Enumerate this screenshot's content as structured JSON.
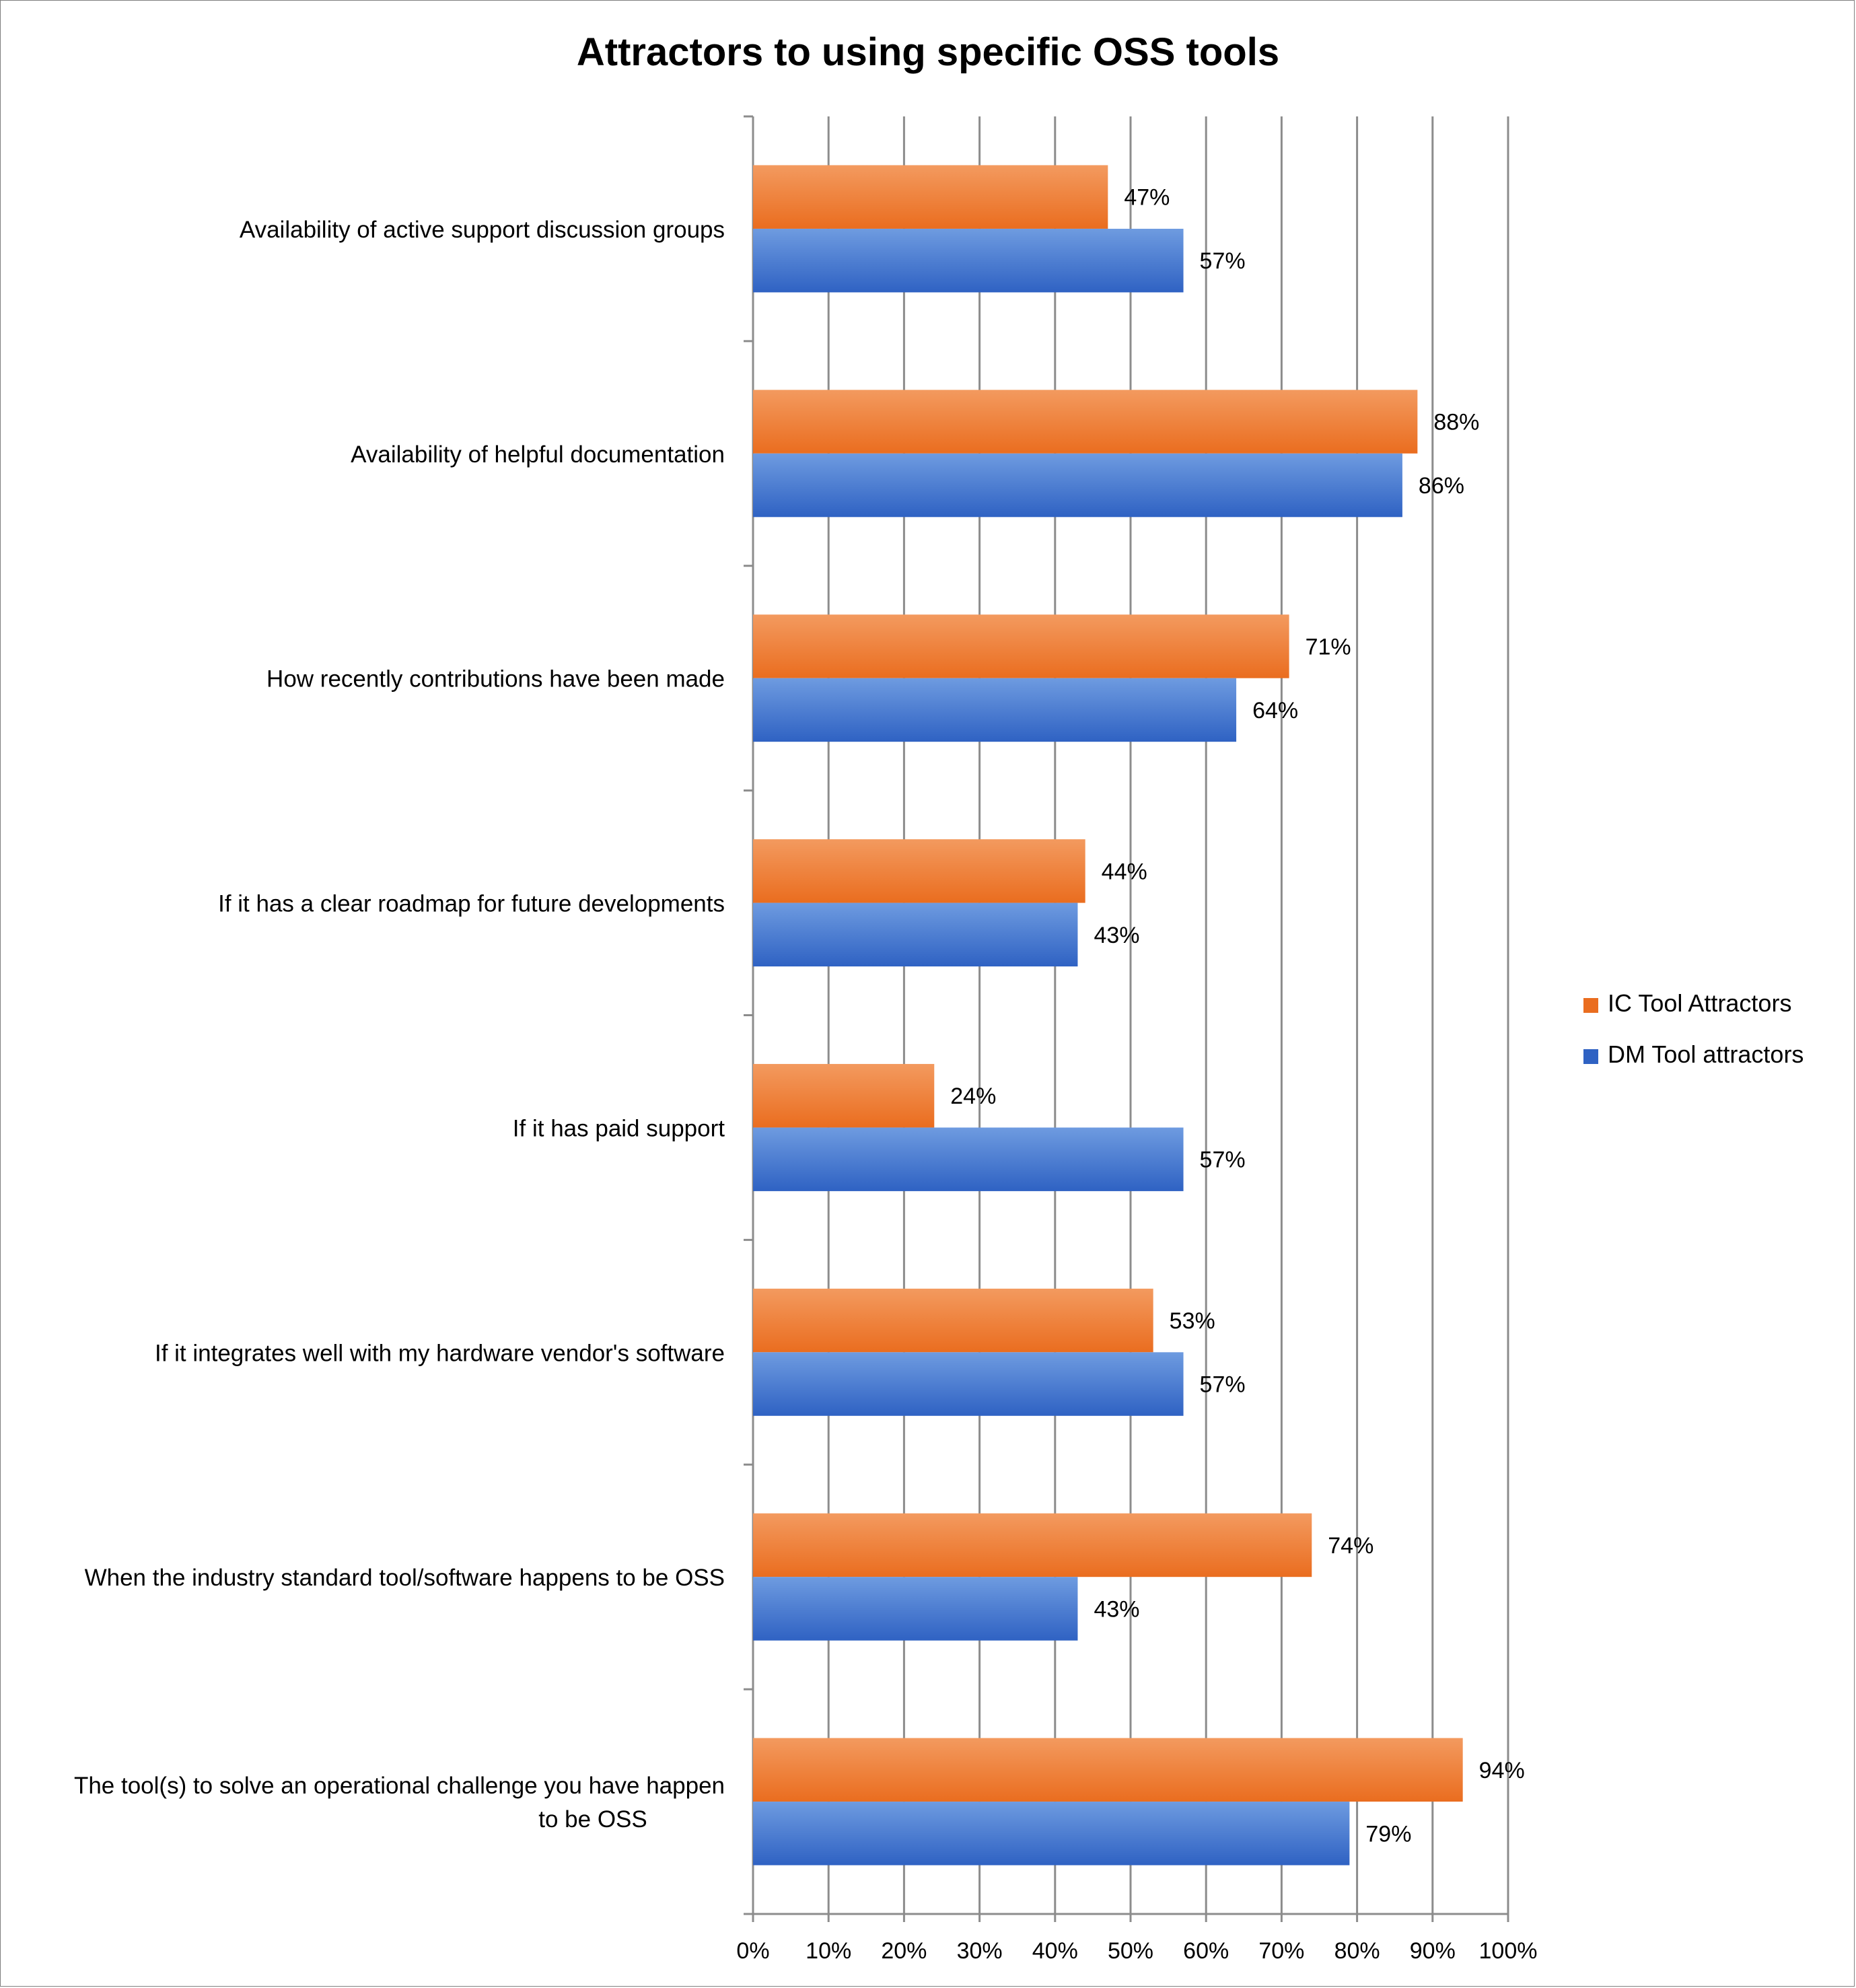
{
  "chart_data": {
    "type": "bar",
    "orientation": "horizontal",
    "title": "Attractors to using specific OSS tools",
    "categories": [
      [
        "Availability of active support discussion groups"
      ],
      [
        "Availability of helpful documentation"
      ],
      [
        "How recently contributions have been made"
      ],
      [
        "If it has a clear roadmap for future developments"
      ],
      [
        "If it has paid support"
      ],
      [
        "If it integrates well with my hardware vendor's software"
      ],
      [
        "When the industry standard tool/software happens to be OSS"
      ],
      [
        "The tool(s) to solve an operational challenge you have happen",
        "to be OSS"
      ]
    ],
    "series": [
      {
        "name": "IC Tool Attractors",
        "color_top": "#f39a5f",
        "color_bottom": "#ea6d1f",
        "values": [
          47,
          88,
          71,
          44,
          24,
          53,
          74,
          94
        ],
        "labels": [
          "47%",
          "88%",
          "71%",
          "44%",
          "24%",
          "53%",
          "74%",
          "94%"
        ]
      },
      {
        "name": "DM Tool attractors",
        "color_top": "#6e9be0",
        "color_bottom": "#2f62c3",
        "values": [
          57,
          86,
          64,
          43,
          57,
          57,
          43,
          79
        ],
        "labels": [
          "57%",
          "86%",
          "64%",
          "43%",
          "57%",
          "57%",
          "43%",
          "79%"
        ]
      }
    ],
    "xlim": [
      0,
      100
    ],
    "xticks": [
      0,
      10,
      20,
      30,
      40,
      50,
      60,
      70,
      80,
      90,
      100
    ],
    "xtick_labels": [
      "0%",
      "10%",
      "20%",
      "30%",
      "40%",
      "50%",
      "60%",
      "70%",
      "80%",
      "90%",
      "100%"
    ],
    "grid": true,
    "legend_position": "right"
  }
}
